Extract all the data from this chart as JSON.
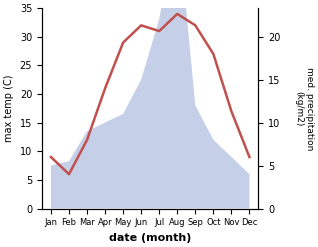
{
  "months": [
    "Jan",
    "Feb",
    "Mar",
    "Apr",
    "May",
    "Jun",
    "Jul",
    "Aug",
    "Sep",
    "Oct",
    "Nov",
    "Dec"
  ],
  "temperature": [
    9,
    6,
    12,
    21,
    29,
    32,
    31,
    34,
    32,
    27,
    17,
    9
  ],
  "precipitation": [
    5,
    5.5,
    9,
    10,
    11,
    15,
    22,
    34,
    12,
    8,
    6,
    4
  ],
  "temp_color": "#c0504d",
  "precip_fill_color": "#c5cfe8",
  "xlabel": "date (month)",
  "ylabel_left": "max temp (C)",
  "ylabel_right": "med. precipitation\n(kg/m2)",
  "ylim_left": [
    0,
    35
  ],
  "ylim_right": [
    0,
    23.3
  ],
  "yticks_left": [
    0,
    5,
    10,
    15,
    20,
    25,
    30,
    35
  ],
  "yticks_right": [
    0,
    5,
    10,
    15,
    20
  ],
  "background_color": "#ffffff",
  "line_width": 1.8,
  "figsize": [
    3.18,
    2.47
  ],
  "dpi": 100
}
